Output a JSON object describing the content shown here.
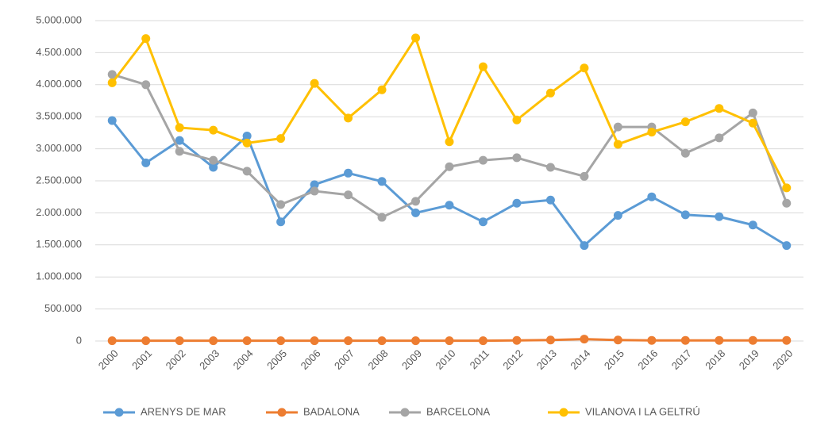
{
  "chart_data": {
    "type": "line",
    "categories": [
      "2000",
      "2001",
      "2002",
      "2003",
      "2004",
      "2005",
      "2006",
      "2007",
      "2008",
      "2009",
      "2010",
      "2011",
      "2012",
      "2013",
      "2014",
      "2015",
      "2016",
      "2017",
      "2018",
      "2019",
      "2020"
    ],
    "series": [
      {
        "name": "ARENYS DE MAR",
        "color": "#5b9bd5",
        "values": [
          3440000,
          2780000,
          3130000,
          2710000,
          3200000,
          1860000,
          2440000,
          2620000,
          2490000,
          2000000,
          2120000,
          1860000,
          2150000,
          2200000,
          1490000,
          1960000,
          2250000,
          1970000,
          1940000,
          1810000,
          1490000
        ]
      },
      {
        "name": "BADALONA",
        "color": "#ed7d31",
        "values": [
          5000,
          5000,
          5000,
          5000,
          5000,
          5000,
          5000,
          5000,
          5000,
          5000,
          5000,
          5000,
          10000,
          15000,
          30000,
          15000,
          10000,
          10000,
          10000,
          10000,
          10000
        ]
      },
      {
        "name": "BARCELONA",
        "color": "#a5a5a5",
        "values": [
          4160000,
          4000000,
          2960000,
          2820000,
          2650000,
          2130000,
          2340000,
          2280000,
          1930000,
          2180000,
          2720000,
          2820000,
          2860000,
          2710000,
          2570000,
          3340000,
          3340000,
          2930000,
          3170000,
          3560000,
          2150000
        ]
      },
      {
        "name": "VILANOVA I LA GELTRÚ",
        "color": "#ffc000",
        "values": [
          4030000,
          4720000,
          3330000,
          3290000,
          3090000,
          3160000,
          4020000,
          3480000,
          3920000,
          4730000,
          3110000,
          4280000,
          3450000,
          3870000,
          4260000,
          3070000,
          3260000,
          3420000,
          3630000,
          3400000,
          2390000
        ]
      }
    ],
    "ylim": [
      0,
      5000000
    ],
    "yticks": [
      0,
      {
        "value": 500000,
        "label": "500.000"
      },
      {
        "value": 1000000,
        "label": "1.000.000"
      },
      {
        "value": 1500000,
        "label": "1.500.000"
      },
      {
        "value": 2000000,
        "label": "2.000.000"
      },
      {
        "value": 2500000,
        "label": "2.500.000"
      },
      {
        "value": 3000000,
        "label": "3.000.000"
      },
      {
        "value": 3500000,
        "label": "3.500.000"
      },
      {
        "value": 4000000,
        "label": "4.000.000"
      },
      {
        "value": 4500000,
        "label": "4.500.000"
      },
      {
        "value": 5000000,
        "label": "5.000.000"
      }
    ],
    "grid": true,
    "legend": "bottom"
  }
}
